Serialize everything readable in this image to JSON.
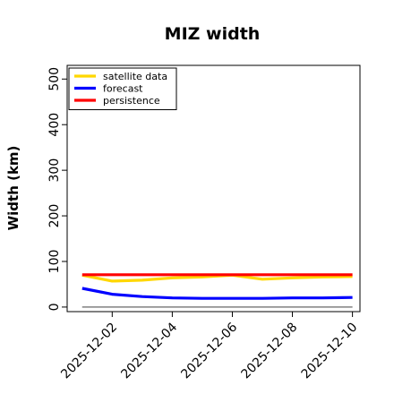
{
  "chart_data": {
    "type": "line",
    "title": "MIZ width",
    "xlabel": "",
    "ylabel": "Width (km)",
    "ylim": [
      -10,
      530
    ],
    "xlim": [
      "2025-11-30 12:00",
      "2025-12-10 06:00"
    ],
    "yticks": [
      0,
      100,
      200,
      300,
      400,
      500
    ],
    "xticks": [
      "2025-12-02",
      "2025-12-04",
      "2025-12-06",
      "2025-12-08",
      "2025-12-10"
    ],
    "highlight_tick": "2025-12-02",
    "highlight_color": "#228b22",
    "legend_position": "top-left",
    "series": [
      {
        "name": "satellite data",
        "color": "#ffd700",
        "x": [
          "2025-12-01",
          "2025-12-02",
          "2025-12-03",
          "2025-12-04",
          "2025-12-05",
          "2025-12-06",
          "2025-12-07",
          "2025-12-08",
          "2025-12-09",
          "2025-12-10"
        ],
        "y": [
          70,
          57,
          59,
          64,
          66,
          70,
          61,
          64,
          66,
          67
        ]
      },
      {
        "name": "forecast",
        "color": "#0000ff",
        "x": [
          "2025-12-01",
          "2025-12-02",
          "2025-12-03",
          "2025-12-04",
          "2025-12-05",
          "2025-12-06",
          "2025-12-07",
          "2025-12-08",
          "2025-12-09",
          "2025-12-10"
        ],
        "y": [
          41,
          28,
          23,
          20,
          19,
          19,
          19,
          20,
          20,
          21
        ]
      },
      {
        "name": "persistence",
        "color": "#ff0000",
        "x": [
          "2025-12-01",
          "2025-12-10"
        ],
        "y": [
          71,
          71
        ]
      }
    ],
    "reference_line": {
      "y": 0,
      "color": "#808080"
    }
  }
}
